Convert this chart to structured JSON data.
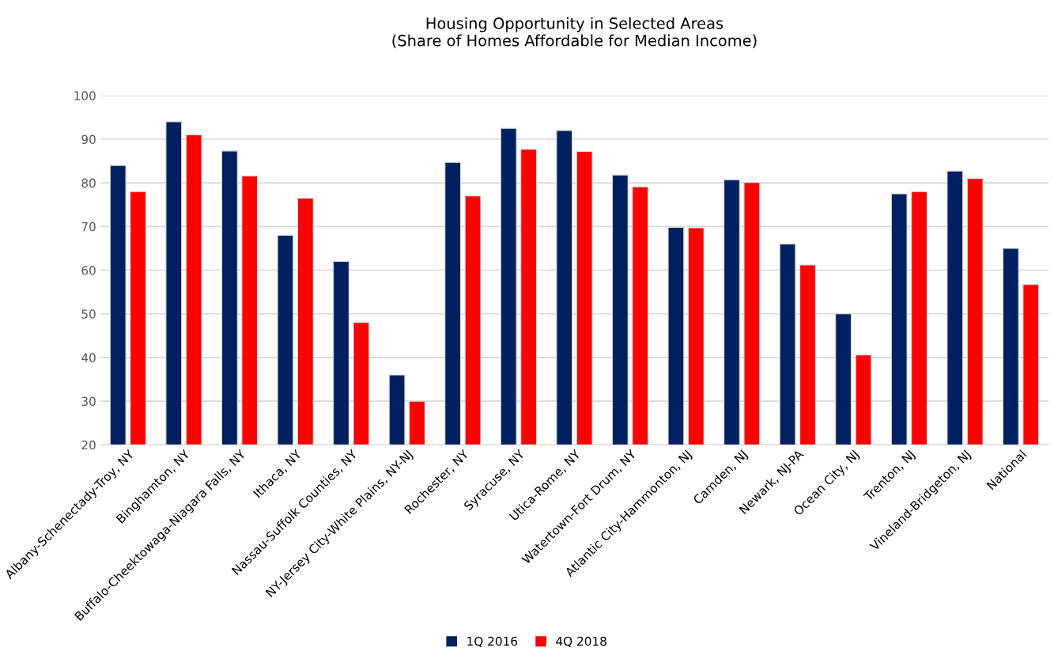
{
  "chart_data": {
    "type": "bar",
    "title": "Housing Opportunity in Selected Areas\n(Share of Homes Affordable for Median Income)",
    "categories": [
      "Albany-Schenectady-Troy, NY",
      "Binghamton, NY",
      "Buffalo-Cheektowaga-Niagara Falls, NY",
      "Ithaca, NY",
      "Nassau-Suffolk Counties, NY",
      "NY-Jersey City-White Plains, NY-NJ",
      "Rochester, NY",
      "Syracuse, NY",
      "Utica-Rome, NY",
      "Watertown-Fort Drum, NY",
      "Atlantic City-Hammonton, NJ",
      "Camden, NJ",
      "Newark, NJ-PA",
      "Ocean City, NJ",
      "Trenton, NJ",
      "Vineland-Bridgeton, NJ",
      "National"
    ],
    "series": [
      {
        "name": "1Q 2016",
        "color": "#002060",
        "values": [
          84,
          94,
          87.3,
          68,
          62,
          36,
          84.7,
          92.5,
          92,
          81.8,
          69.8,
          80.7,
          66,
          50,
          77.5,
          82.7,
          65
        ]
      },
      {
        "name": "4Q 2018",
        "color": "#ff0000",
        "values": [
          78,
          91,
          81.6,
          76.5,
          48,
          30,
          77,
          87.7,
          87.2,
          79.1,
          69.7,
          80.1,
          61.2,
          40.6,
          78,
          81,
          56.7
        ]
      }
    ],
    "ylim": [
      20,
      100
    ],
    "yticks": [
      20,
      30,
      40,
      50,
      60,
      70,
      80,
      90,
      100
    ],
    "grid": "y",
    "legend": "bottom"
  }
}
